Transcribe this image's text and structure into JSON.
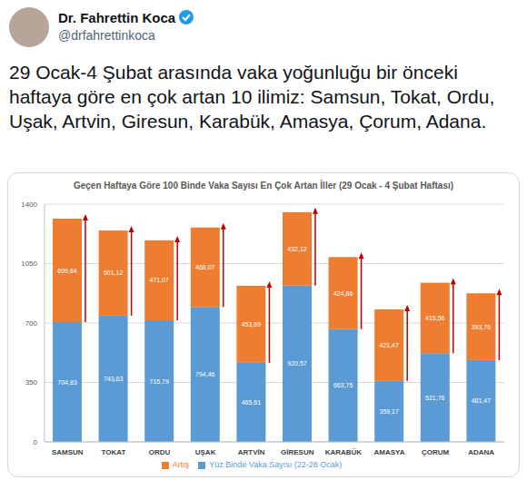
{
  "tweet": {
    "name": "Dr. Fahrettin Koca",
    "handle": "@drfahrettinkoca",
    "text": "29 Ocak-4 Şubat arasında vaka yoğunluğu bir önceki haftaya göre en çok artan 10 ilimiz: Samsun, Tokat, Ordu, Uşak, Artvin, Giresun, Karabük, Amasya, Çorum, Adana."
  },
  "chart_data": {
    "type": "bar",
    "title": "Geçen Haftaya Göre 100 Binde Vaka Sayısı En Çok Artan İller (29 Ocak - 4 Şubat Haftası)",
    "categories": [
      "SAMSUN",
      "TOKAT",
      "ORDU",
      "UŞAK",
      "ARTVİN",
      "GİRESUN",
      "KARABÜK",
      "AMASYA",
      "ÇORUM",
      "ADANA"
    ],
    "series": [
      {
        "name": "Yüz Binde Vaka Sayısı (22-28 Ocak)",
        "color": "#5b9bd5",
        "values": [
          704.83,
          743.63,
          715.79,
          794.46,
          465.61,
          920.57,
          663.75,
          359.17,
          521.76,
          481.47
        ],
        "value_labels": [
          "704,83",
          "743,63",
          "715,79",
          "794,46",
          "465,61",
          "920,57",
          "663,75",
          "359,17",
          "521,76",
          "481,47"
        ]
      },
      {
        "name": "Artış",
        "color": "#ed7d31",
        "values": [
          609.84,
          501.12,
          471.07,
          468.07,
          453.69,
          432.12,
          424.86,
          421.47,
          415.56,
          393.76
        ],
        "value_labels": [
          "609,84",
          "501,12",
          "471,07",
          "468,07",
          "453,69",
          "432,12",
          "424,86",
          "421,47",
          "415,56",
          "393,76"
        ]
      }
    ],
    "ylim": [
      0,
      1400
    ],
    "yticks": [
      0,
      350,
      700,
      1050,
      1400
    ],
    "grid": true,
    "stacked": true,
    "data_labels": true,
    "legend": "bottom"
  }
}
